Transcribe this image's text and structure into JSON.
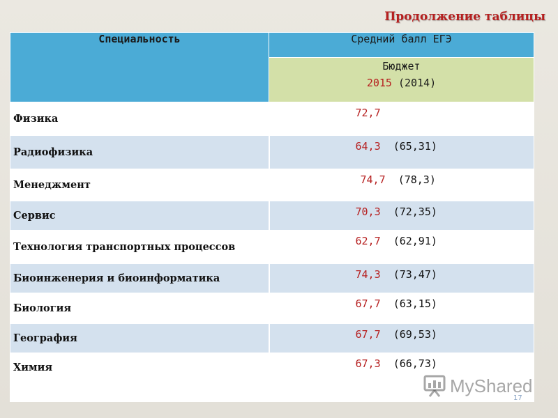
{
  "slide": {
    "title": "Продолжение таблицы",
    "page_number": "17"
  },
  "table": {
    "header": {
      "specialty": "Специальность",
      "avg_score": "Средний балл ЕГЭ",
      "budget": "Бюджет",
      "year_current": "2015",
      "year_previous": "(2014)"
    },
    "rows": [
      {
        "name": "Физика",
        "current": "72,7",
        "previous": ""
      },
      {
        "name": "Радиофизика",
        "current": "64,3",
        "previous": "(65,31)"
      },
      {
        "name": "Менеджмент",
        "current": "74,7",
        "previous": "(78,3)"
      },
      {
        "name": "Сервис",
        "current": "70,3",
        "previous": "(72,35)"
      },
      {
        "name": "Технология транспортных процессов",
        "current": "62,7",
        "previous": "(62,91)"
      },
      {
        "name": "Биоинженерия и биоинформатика",
        "current": "74,3",
        "previous": "(73,47)"
      },
      {
        "name": "Биология",
        "current": "67,7",
        "previous": "(63,15)"
      },
      {
        "name": "География",
        "current": "67,7",
        "previous": "(69,53)"
      },
      {
        "name": "Химия",
        "current": "67,3",
        "previous": "(66,73)"
      }
    ]
  },
  "watermark": {
    "text": "MyShared",
    "icon": "presentation-board-icon"
  },
  "colors": {
    "header_blue": "#4babd6",
    "budget_green": "#d3e0a8",
    "row_blue": "#d4e1ee",
    "accent_red": "#b61f1f"
  }
}
